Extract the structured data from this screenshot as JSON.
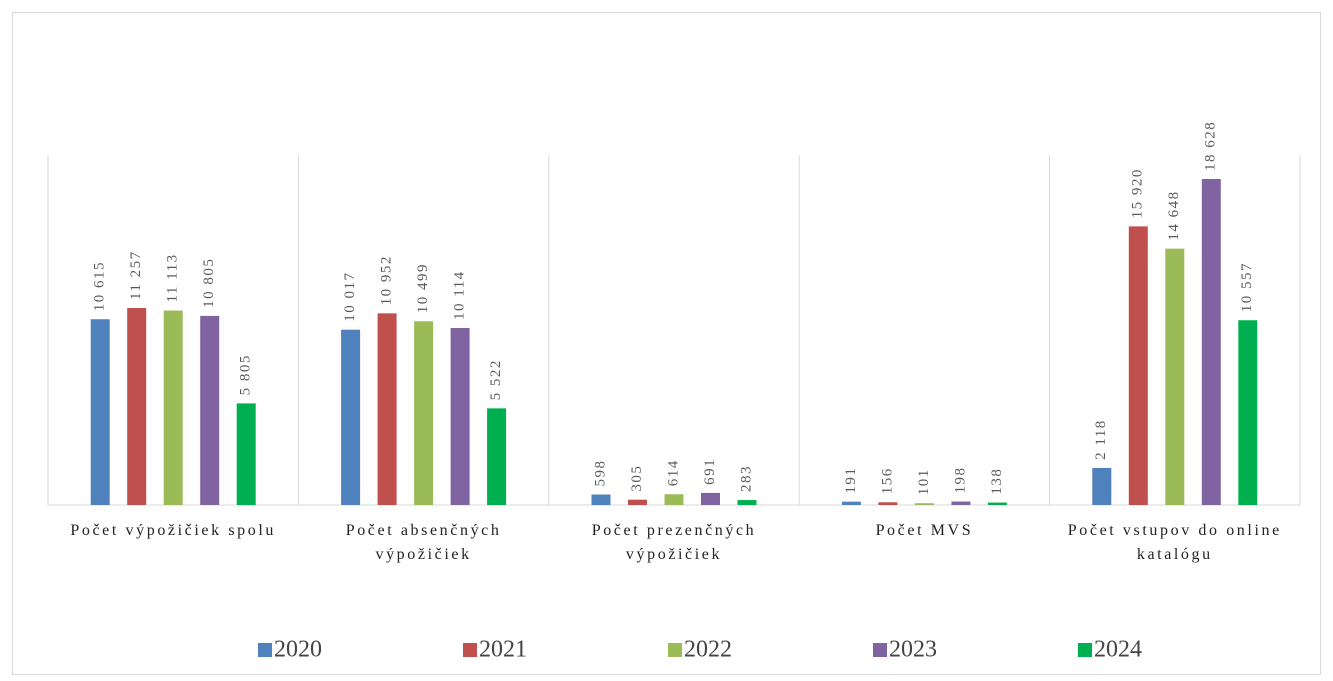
{
  "chart_data": {
    "type": "bar",
    "categories": [
      "Počet výpožičiek spolu",
      "Počet absenčných výpožičiek",
      "Počet prezenčných výpožičiek",
      "Počet MVS",
      "Počet vstupov do online katalógu"
    ],
    "series": [
      {
        "name": "2020",
        "color": "#4f81bd",
        "values": [
          10615,
          10017,
          598,
          191,
          2118
        ],
        "value_labels": [
          "10 615",
          "10 017",
          "598",
          "191",
          "2 118"
        ]
      },
      {
        "name": "2021",
        "color": "#c0504d",
        "values": [
          11257,
          10952,
          305,
          156,
          15920
        ],
        "value_labels": [
          "11 257",
          "10 952",
          "305",
          "156",
          "15 920"
        ]
      },
      {
        "name": "2022",
        "color": "#9bbb59",
        "values": [
          11113,
          10499,
          614,
          101,
          14648
        ],
        "value_labels": [
          "11 113",
          "10 499",
          "614",
          "101",
          "14 648"
        ]
      },
      {
        "name": "2023",
        "color": "#8064a2",
        "values": [
          10805,
          10114,
          691,
          198,
          18628
        ],
        "value_labels": [
          "10 805",
          "10 114",
          "691",
          "198",
          "18 628"
        ]
      },
      {
        "name": "2024",
        "color": "#00b050",
        "values": [
          5805,
          5522,
          283,
          138,
          10557
        ],
        "value_labels": [
          "5 805",
          "5 522",
          "283",
          "138",
          "10 557"
        ]
      }
    ],
    "legend": "bottom"
  }
}
